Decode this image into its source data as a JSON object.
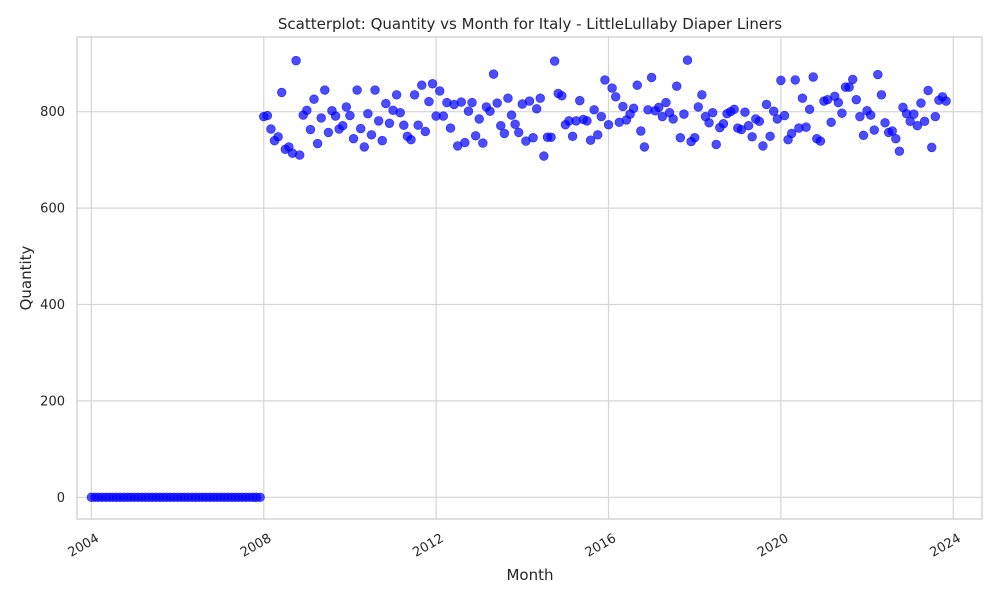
{
  "chart_data": {
    "type": "scatter",
    "title": "Scatterplot: Quantity vs Month for Italy - LittleLullaby Diaper Liners",
    "xlabel": "Month",
    "ylabel": "Quantity",
    "x_ticks": [
      "2004",
      "2008",
      "2012",
      "2016",
      "2020",
      "2024"
    ],
    "y_ticks": [
      0,
      200,
      400,
      600,
      800
    ],
    "xlim": [
      "2003-09",
      "2024-09"
    ],
    "ylim": [
      -45,
      955
    ],
    "grid": true,
    "marker_color": "#0000ff",
    "points": {
      "start_month": "2004-01",
      "frequency": "monthly",
      "y": [
        0,
        0,
        0,
        0,
        0,
        0,
        0,
        0,
        0,
        0,
        0,
        0,
        0,
        0,
        0,
        0,
        0,
        0,
        0,
        0,
        0,
        0,
        0,
        0,
        0,
        0,
        0,
        0,
        0,
        0,
        0,
        0,
        0,
        0,
        0,
        0,
        0,
        0,
        0,
        0,
        0,
        0,
        0,
        0,
        0,
        0,
        0,
        0,
        790,
        792,
        764,
        740,
        748,
        840,
        722,
        727,
        714,
        906,
        710,
        793,
        803,
        763,
        826,
        734,
        787,
        845,
        757,
        802,
        791,
        764,
        771,
        810,
        792,
        744,
        845,
        765,
        727,
        796,
        752,
        845,
        781,
        740,
        817,
        776,
        803,
        835,
        798,
        772,
        749,
        742,
        835,
        772,
        855,
        759,
        821,
        858,
        791,
        843,
        791,
        819,
        766,
        815,
        729,
        820,
        736,
        801,
        819,
        750,
        785,
        735,
        810,
        801,
        878,
        818,
        771,
        755,
        828,
        793,
        774,
        757,
        816,
        739,
        822,
        746,
        806,
        828,
        708,
        747,
        747,
        905,
        838,
        833,
        773,
        781,
        749,
        781,
        823,
        784,
        781,
        741,
        804,
        752,
        790,
        866,
        773,
        849,
        831,
        778,
        811,
        783,
        795,
        807,
        855,
        760,
        727,
        804,
        871,
        802,
        809,
        790,
        819,
        798,
        785,
        853,
        746,
        795,
        907,
        738,
        746,
        810,
        835,
        790,
        777,
        798,
        732,
        767,
        775,
        796,
        800,
        805,
        766,
        763,
        799,
        771,
        748,
        785,
        780,
        729,
        815,
        749,
        801,
        785,
        865,
        792,
        742,
        755,
        866,
        766,
        828,
        768,
        805,
        872,
        744,
        739,
        822,
        825,
        778,
        832,
        819,
        797,
        851,
        851,
        867,
        825,
        790,
        751,
        802,
        793,
        762,
        877,
        835,
        777,
        757,
        760,
        744,
        718,
        809,
        796,
        780,
        795,
        771,
        818,
        780,
        844,
        726,
        790,
        824,
        831,
        822
      ]
    }
  }
}
